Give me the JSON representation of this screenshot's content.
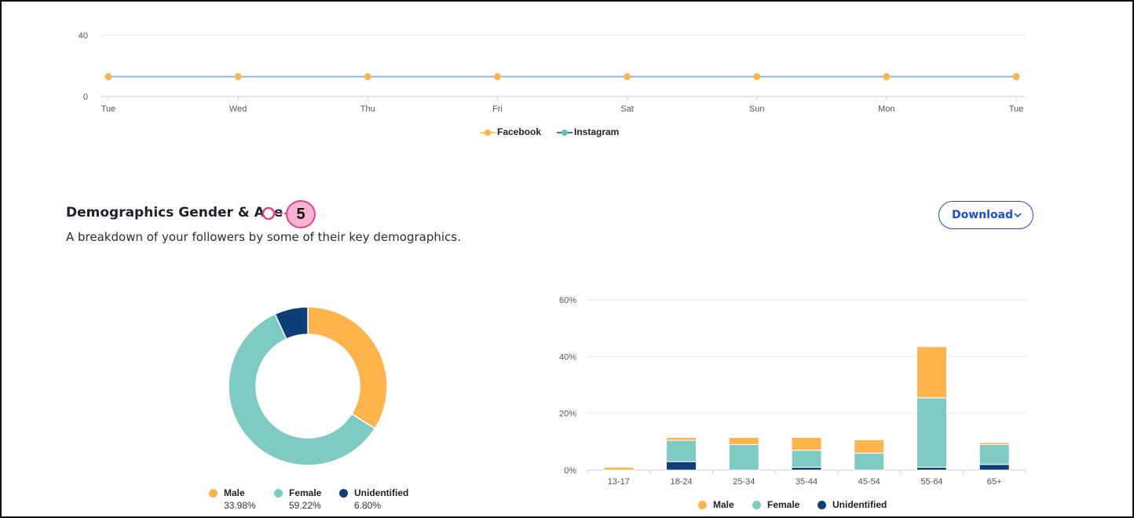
{
  "colors": {
    "male": "#fdb44b",
    "female": "#7ecbc4",
    "unidentified": "#0e3f78",
    "facebook": "#fdb44b",
    "instagram": "#5cc0b5",
    "line": "#8ab8f0",
    "grid": "#e6e6e6",
    "accent": "#1d4ed8",
    "annotation": "#e2428f"
  },
  "line_chart": {
    "y_ticks": [
      "40",
      "0"
    ],
    "legend": [
      {
        "label": "Facebook",
        "color": "#fdb44b"
      },
      {
        "label": "Instagram",
        "color": "#5cc0b5"
      }
    ]
  },
  "section": {
    "title": "Demographics Gender & Age",
    "description": "A breakdown of your followers by some of their key demographics.",
    "annotation_number": "5",
    "download_label": "Download",
    "download_icon": "chevron-down-icon"
  },
  "donut_legend": [
    {
      "label": "Male",
      "pct": "33.98%",
      "color": "#fdb44b"
    },
    {
      "label": "Female",
      "pct": "59.22%",
      "color": "#7ecbc4"
    },
    {
      "label": "Unidentified",
      "pct": "6.80%",
      "color": "#0e3f78"
    }
  ],
  "bar_legend": [
    {
      "label": "Male",
      "color": "#fdb44b"
    },
    {
      "label": "Female",
      "color": "#7ecbc4"
    },
    {
      "label": "Unidentified",
      "color": "#0e3f78"
    }
  ],
  "chart_data": [
    {
      "type": "line",
      "x": [
        "Tue",
        "Wed",
        "Thu",
        "Fri",
        "Sat",
        "Sun",
        "Mon",
        "Tue"
      ],
      "series": [
        {
          "name": "Facebook",
          "values": [
            13,
            13,
            13,
            13,
            13,
            13,
            13,
            13
          ]
        }
      ],
      "ylim": [
        0,
        40
      ],
      "y_ticks": [
        0,
        40
      ],
      "grid": true,
      "legend": "bottom",
      "legend_entries": [
        "Facebook",
        "Instagram"
      ]
    },
    {
      "type": "pie",
      "donut": true,
      "categories": [
        "Male",
        "Female",
        "Unidentified"
      ],
      "values": [
        33.98,
        59.22,
        6.8
      ],
      "legend": "bottom"
    },
    {
      "type": "bar",
      "stacked": true,
      "categories": [
        "13-17",
        "18-24",
        "25-34",
        "35-44",
        "45-54",
        "55-64",
        "65+"
      ],
      "series": [
        {
          "name": "Unidentified",
          "values": [
            0,
            3,
            0,
            1,
            0,
            1,
            2
          ]
        },
        {
          "name": "Female",
          "values": [
            0,
            7.5,
            9,
            6,
            6,
            24.5,
            7
          ]
        },
        {
          "name": "Male",
          "values": [
            1,
            1,
            2.5,
            4.5,
            4.7,
            18,
            0.7
          ]
        }
      ],
      "y_ticks": [
        "0%",
        "20%",
        "40%",
        "60%"
      ],
      "ylim": [
        0,
        60
      ],
      "grid": true,
      "legend": "bottom"
    }
  ]
}
